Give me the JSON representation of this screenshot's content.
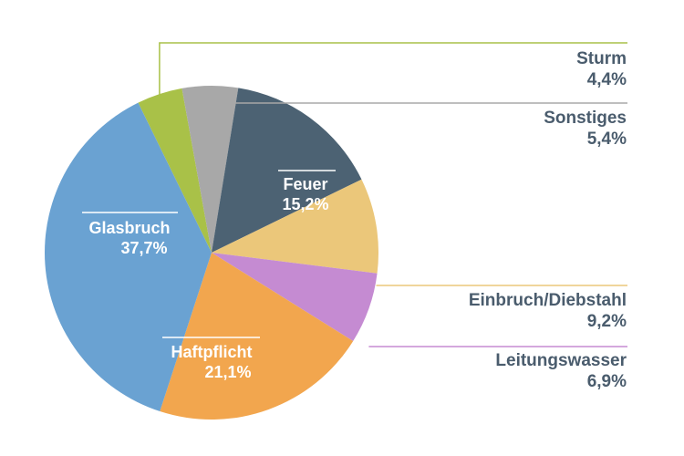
{
  "chart_data": {
    "type": "pie",
    "title": "",
    "slices": [
      {
        "name": "Sturm",
        "value": 4.4,
        "label": "4,4%",
        "color": "#a9c148",
        "label_position": "outside"
      },
      {
        "name": "Sonstiges",
        "value": 5.4,
        "label": "5,4%",
        "color": "#a8a8a8",
        "label_position": "outside"
      },
      {
        "name": "Feuer",
        "value": 15.2,
        "label": "15,2%",
        "color": "#4c6273",
        "label_position": "inside"
      },
      {
        "name": "Einbruch/Diebstahl",
        "value": 9.2,
        "label": "9,2%",
        "color": "#ebc77a",
        "label_position": "outside"
      },
      {
        "name": "Leitungswasser",
        "value": 6.9,
        "label": "6,9%",
        "color": "#c58bd2",
        "label_position": "outside"
      },
      {
        "name": "Haftpflicht",
        "value": 21.1,
        "label": "21,1%",
        "color": "#f2a64e",
        "label_position": "inside"
      },
      {
        "name": "Glasbruch",
        "value": 37.7,
        "label": "37,7%",
        "color": "#6aa2d2",
        "label_position": "inside"
      }
    ],
    "legend": "none"
  }
}
